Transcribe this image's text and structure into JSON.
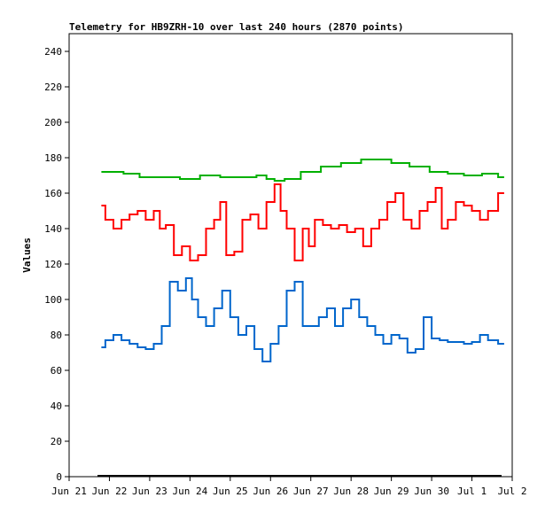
{
  "chart_data": {
    "type": "line",
    "title": "Telemetry for HB9ZRH-10 over last 240 hours (2870 points)",
    "xlabel": "",
    "ylabel": "Values",
    "ylim": [
      0,
      250
    ],
    "xlim_days": [
      0,
      11
    ],
    "yticks": [
      0,
      20,
      40,
      60,
      80,
      100,
      120,
      140,
      160,
      180,
      200,
      220,
      240
    ],
    "xticks": [
      "Jun 21",
      "Jun 22",
      "Jun 23",
      "Jun 24",
      "Jun 25",
      "Jun 26",
      "Jun 27",
      "Jun 28",
      "Jun 29",
      "Jun 30",
      "Jul 1",
      "Jul 2"
    ],
    "grid": false,
    "series": [
      {
        "color": "#00b000",
        "x": [
          0.8,
          1.2,
          1.5,
          2.0,
          2.5,
          3.0,
          3.5,
          4.0,
          4.5,
          4.8,
          5.0,
          5.2,
          5.5,
          6.0,
          6.5,
          7.0,
          7.5,
          7.8,
          8.2,
          8.7,
          9.2,
          9.6,
          10.0,
          10.5,
          10.8
        ],
        "y": [
          172,
          172,
          171,
          169,
          169,
          168,
          170,
          169,
          169,
          170,
          168,
          167,
          168,
          172,
          175,
          177,
          179,
          179,
          177,
          175,
          172,
          171,
          170,
          171,
          169
        ]
      },
      {
        "color": "#ff0000",
        "x": [
          0.8,
          1.0,
          1.2,
          1.4,
          1.6,
          1.8,
          2.0,
          2.2,
          2.3,
          2.5,
          2.7,
          2.9,
          3.1,
          3.3,
          3.5,
          3.7,
          3.8,
          4.0,
          4.2,
          4.4,
          4.6,
          4.8,
          5.0,
          5.2,
          5.3,
          5.5,
          5.7,
          5.9,
          6.0,
          6.2,
          6.4,
          6.6,
          6.8,
          7.0,
          7.2,
          7.4,
          7.6,
          7.8,
          8.0,
          8.2,
          8.4,
          8.6,
          8.8,
          9.0,
          9.2,
          9.3,
          9.5,
          9.7,
          9.9,
          10.1,
          10.3,
          10.5,
          10.8
        ],
        "y": [
          153,
          145,
          140,
          145,
          148,
          150,
          145,
          150,
          140,
          142,
          125,
          130,
          122,
          125,
          140,
          145,
          155,
          125,
          127,
          145,
          148,
          140,
          155,
          165,
          150,
          140,
          122,
          140,
          130,
          145,
          142,
          140,
          142,
          138,
          140,
          130,
          140,
          145,
          155,
          160,
          145,
          140,
          150,
          155,
          163,
          140,
          145,
          155,
          153,
          150,
          145,
          150,
          160
        ]
      },
      {
        "color": "#0066cc",
        "x": [
          0.8,
          1.0,
          1.2,
          1.4,
          1.6,
          1.8,
          2.0,
          2.2,
          2.4,
          2.6,
          2.8,
          3.0,
          3.1,
          3.3,
          3.5,
          3.7,
          3.9,
          4.1,
          4.3,
          4.5,
          4.7,
          4.9,
          5.1,
          5.3,
          5.5,
          5.7,
          5.9,
          6.1,
          6.3,
          6.5,
          6.7,
          6.9,
          7.1,
          7.3,
          7.5,
          7.7,
          7.9,
          8.1,
          8.3,
          8.5,
          8.7,
          8.9,
          9.1,
          9.3,
          9.5,
          9.7,
          9.9,
          10.1,
          10.3,
          10.5,
          10.8
        ],
        "y": [
          73,
          77,
          80,
          77,
          75,
          73,
          72,
          75,
          85,
          110,
          105,
          112,
          100,
          90,
          85,
          95,
          105,
          90,
          80,
          85,
          72,
          65,
          75,
          85,
          105,
          110,
          85,
          85,
          90,
          95,
          85,
          95,
          100,
          90,
          85,
          80,
          75,
          80,
          78,
          70,
          72,
          90,
          78,
          77,
          76,
          76,
          75,
          76,
          80,
          77,
          75
        ]
      }
    ]
  }
}
